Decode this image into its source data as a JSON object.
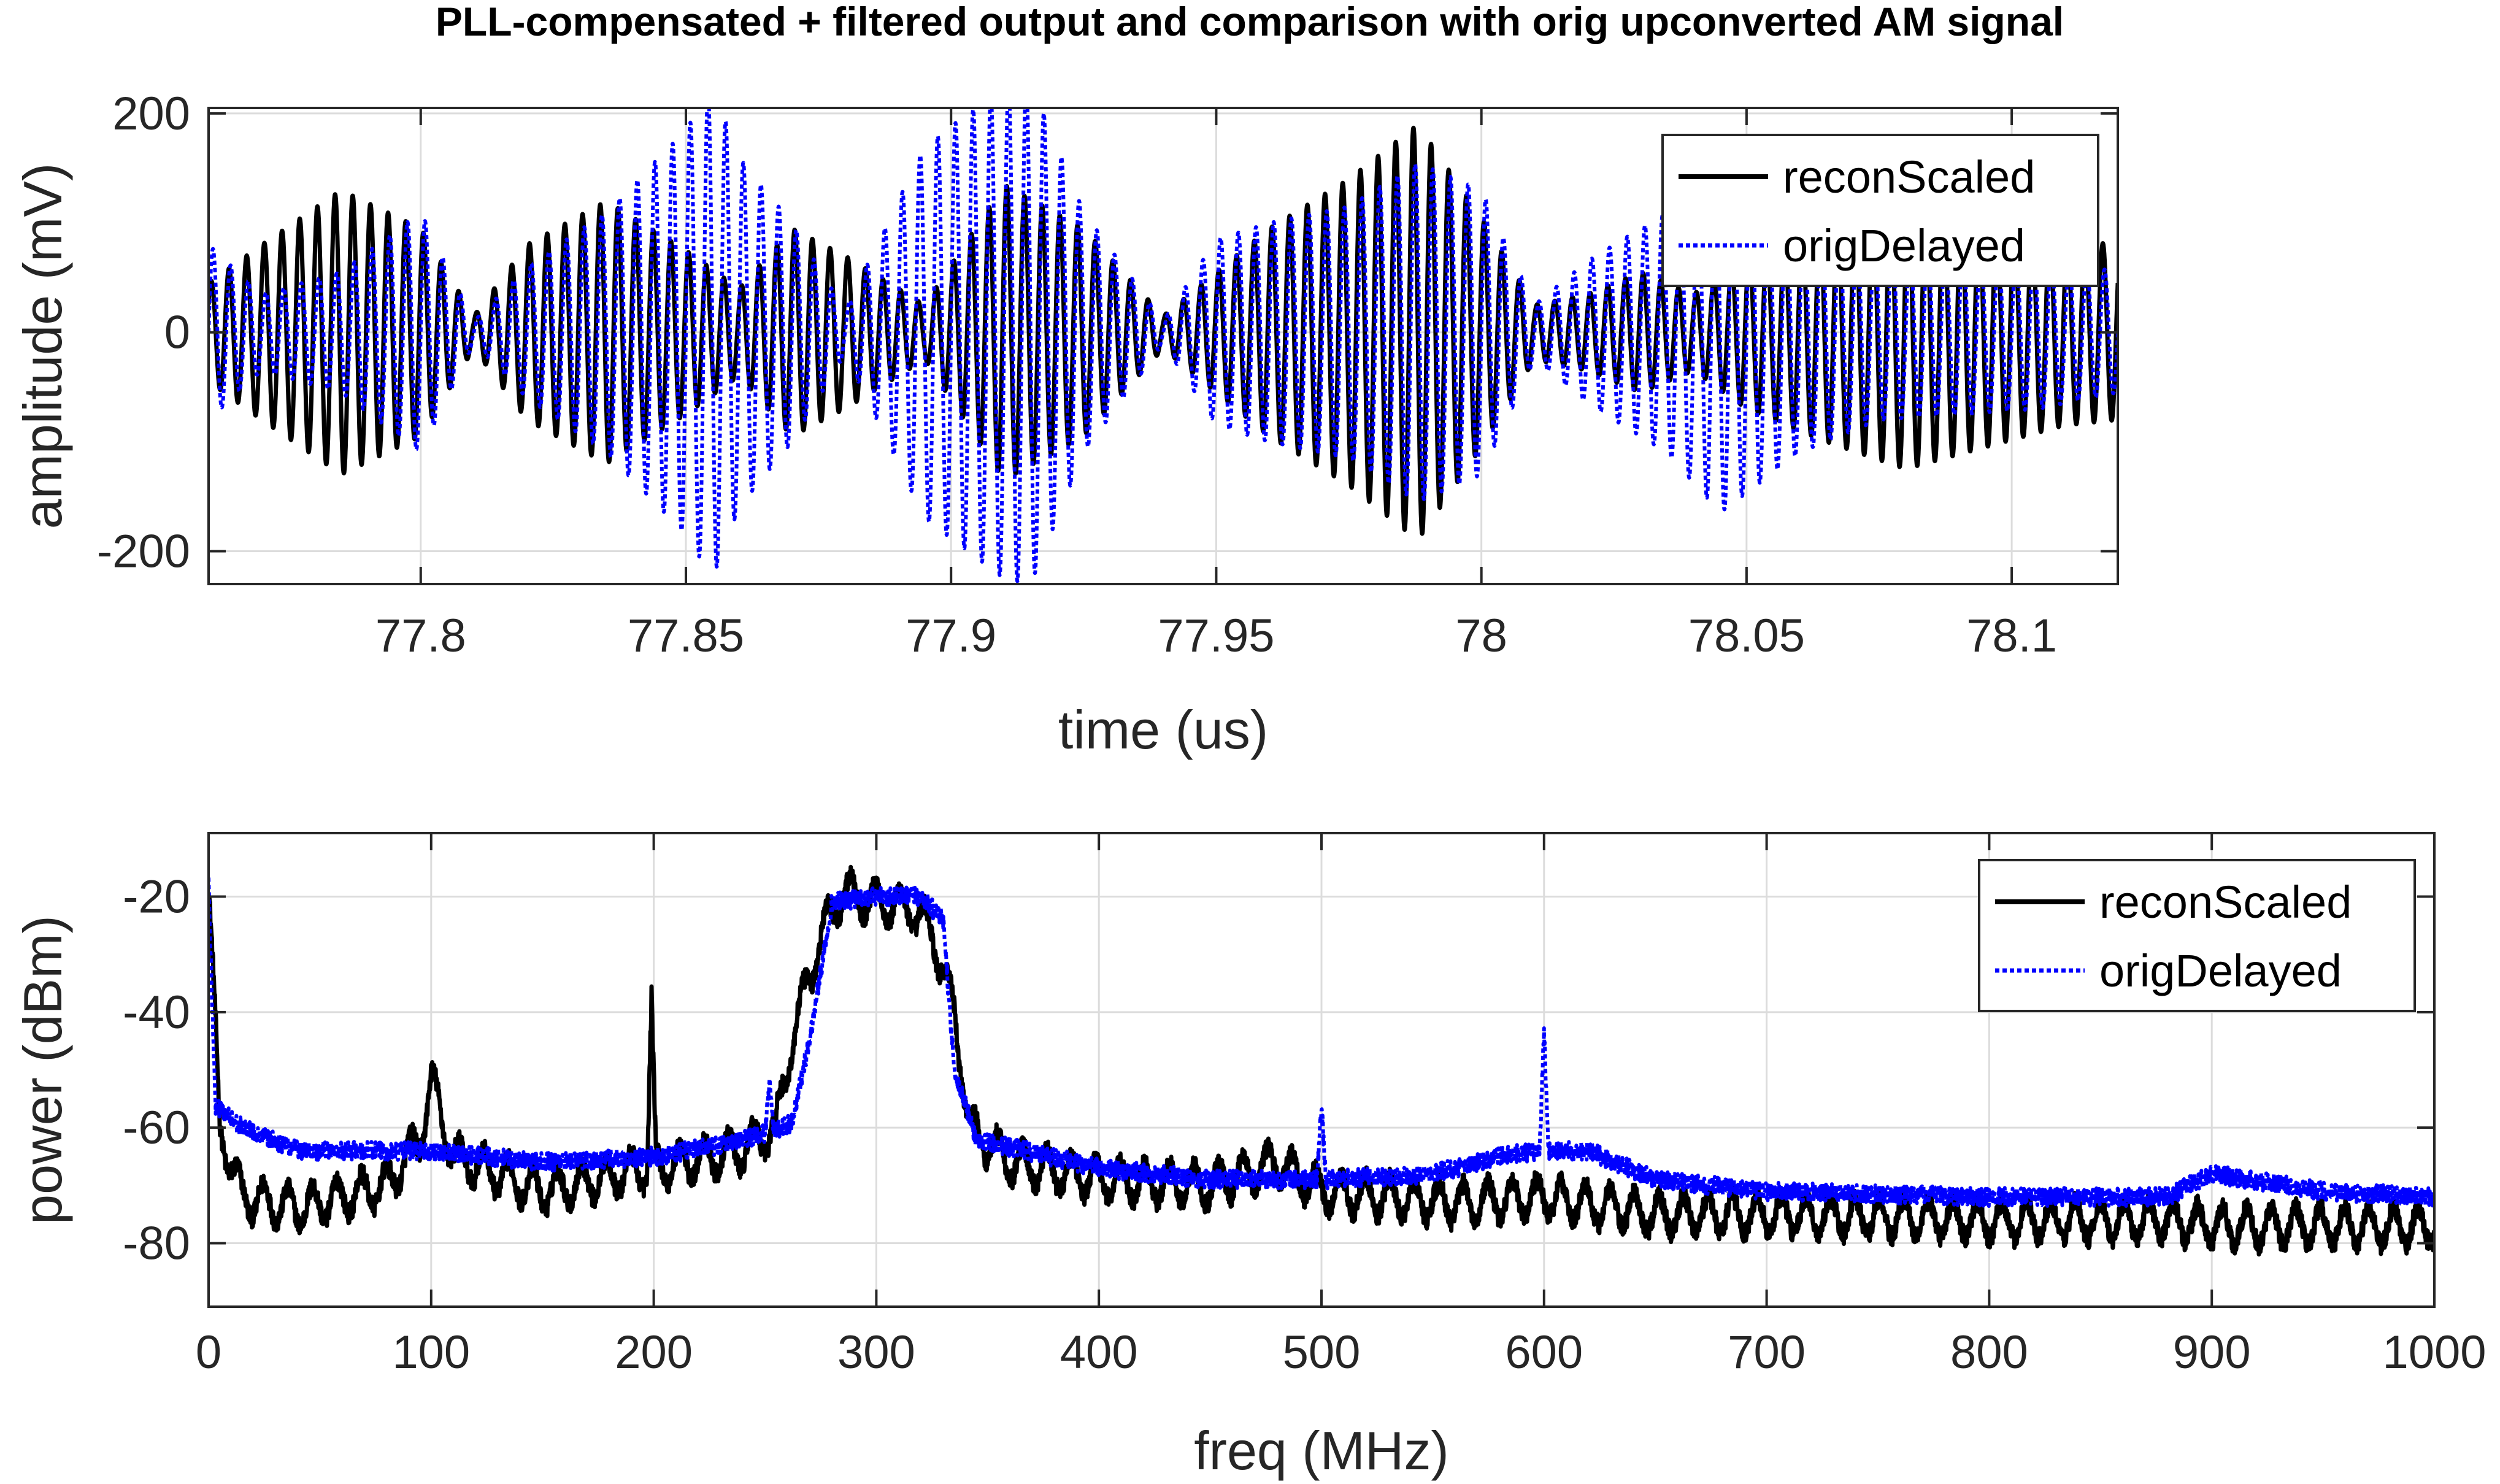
{
  "title": "PLL-compensated + filtered output and comparison with orig upconverted AM signal",
  "chart_data": [
    {
      "type": "line",
      "title": "PLL-compensated + filtered output and comparison with orig upconverted AM signal",
      "xlabel": "time (us)",
      "ylabel": "amplitude (mV)",
      "xlim": [
        77.76,
        78.12
      ],
      "ylim": [
        -230,
        205
      ],
      "xticks": [
        77.8,
        77.85,
        77.9,
        77.95,
        78,
        78.05,
        78.1
      ],
      "xtick_labels": [
        "77.8",
        "77.85",
        "77.9",
        "77.95",
        "78",
        "78.05",
        "78.1"
      ],
      "yticks": [
        -200,
        0,
        200
      ],
      "ytick_labels": [
        "-200",
        "0",
        "200"
      ],
      "grid": true,
      "legend_position": "top-right",
      "carrier_frequency_mhz": 300,
      "series": [
        {
          "name": "reconScaled",
          "color": "#000000",
          "style": "solid",
          "envelope": {
            "t": [
              77.76,
              77.77,
              77.785,
              77.8,
              77.81,
              77.82,
              77.835,
              77.85,
              77.86,
              77.87,
              77.88,
              77.895,
              77.91,
              77.925,
              77.94,
              77.95,
              77.96,
              77.975,
              77.988,
              78.0,
              78.01,
              78.02,
              78.03,
              78.04,
              78.05,
              78.065,
              78.08,
              78.095,
              78.11,
              78.12
            ],
            "value": [
              45,
              80,
              130,
              95,
              15,
              80,
              120,
              75,
              40,
              95,
              70,
              25,
              135,
              95,
              15,
              55,
              95,
              140,
              190,
              105,
              25,
              35,
              55,
              35,
              70,
              100,
              125,
              105,
              85,
              80
            ]
          }
        },
        {
          "name": "origDelayed",
          "color": "#0000ff",
          "style": "dotted",
          "envelope": {
            "t": [
              77.76,
              77.77,
              77.785,
              77.8,
              77.81,
              77.82,
              77.835,
              77.85,
              77.855,
              77.86,
              77.87,
              77.88,
              77.895,
              77.91,
              77.915,
              77.925,
              77.94,
              77.95,
              77.96,
              77.975,
              77.988,
              78.0,
              78.01,
              78.02,
              78.035,
              78.045,
              78.06,
              78.075,
              78.09,
              78.105,
              78.12
            ],
            "value": [
              80,
              35,
              55,
              110,
              10,
              60,
              110,
              185,
              225,
              160,
              100,
              20,
              170,
              225,
              230,
              110,
              10,
              85,
              100,
              115,
              155,
              130,
              25,
              65,
              110,
              165,
              110,
              80,
              75,
              70,
              55
            ]
          }
        }
      ]
    },
    {
      "type": "line",
      "title": "",
      "xlabel": "freq (MHz)",
      "ylabel": "power (dBm)",
      "xlim": [
        0,
        1000
      ],
      "ylim": [
        -91,
        -9
      ],
      "xticks": [
        0,
        100,
        200,
        300,
        400,
        500,
        600,
        700,
        800,
        900,
        1000
      ],
      "xtick_labels": [
        "0",
        "100",
        "200",
        "300",
        "400",
        "500",
        "600",
        "700",
        "800",
        "900",
        "1000"
      ],
      "yticks": [
        -80,
        -60,
        -40,
        -20
      ],
      "ytick_labels": [
        "-80",
        "-60",
        "-40",
        "-20"
      ],
      "grid": true,
      "legend_position": "top-right",
      "series": [
        {
          "name": "reconScaled",
          "color": "#000000",
          "style": "solid",
          "trend": {
            "x": [
              0,
              5,
              15,
              40,
              80,
              95,
              100,
              110,
              150,
              197,
              199,
              201,
              240,
              255,
              262,
              275,
              285,
              300,
              315,
              325,
              335,
              342,
              360,
              400,
              450,
              480,
              500,
              560,
              600,
              650,
              700,
              800,
              880,
              900,
              950,
              1000
            ],
            "y": [
              -18,
              -60,
              -72,
              -74,
              -70,
              -62,
              -52,
              -65,
              -71,
              -67,
              -39,
              -67,
              -64,
              -60,
              -45,
              -27,
              -19,
              -21,
              -22,
              -26,
              -40,
              -60,
              -66,
              -69,
              -70,
              -66,
              -71,
              -73,
              -72,
              -75,
              -75,
              -76,
              -76,
              -77,
              -77,
              -77
            ]
          }
        },
        {
          "name": "origDelayed",
          "color": "#0000ff",
          "style": "dotted",
          "trend": {
            "x": [
              0,
              3,
              15,
              40,
              100,
              150,
              200,
              230,
              250,
              252,
              254,
              262,
              270,
              280,
              300,
              320,
              330,
              335,
              345,
              400,
              450,
              498,
              500,
              502,
              550,
              580,
              598,
              600,
              602,
              620,
              650,
              700,
              800,
              880,
              900,
              950,
              1000
            ],
            "y": [
              -18,
              -56,
              -60,
              -64,
              -64,
              -66,
              -65,
              -63,
              -61,
              -52,
              -61,
              -59,
              -45,
              -21,
              -20,
              -20,
              -24,
              -50,
              -62,
              -67,
              -69,
              -69,
              -56,
              -69,
              -68,
              -65,
              -64,
              -43,
              -64,
              -64,
              -69,
              -71,
              -72,
              -72,
              -68,
              -71,
              -72
            ]
          }
        }
      ]
    }
  ]
}
